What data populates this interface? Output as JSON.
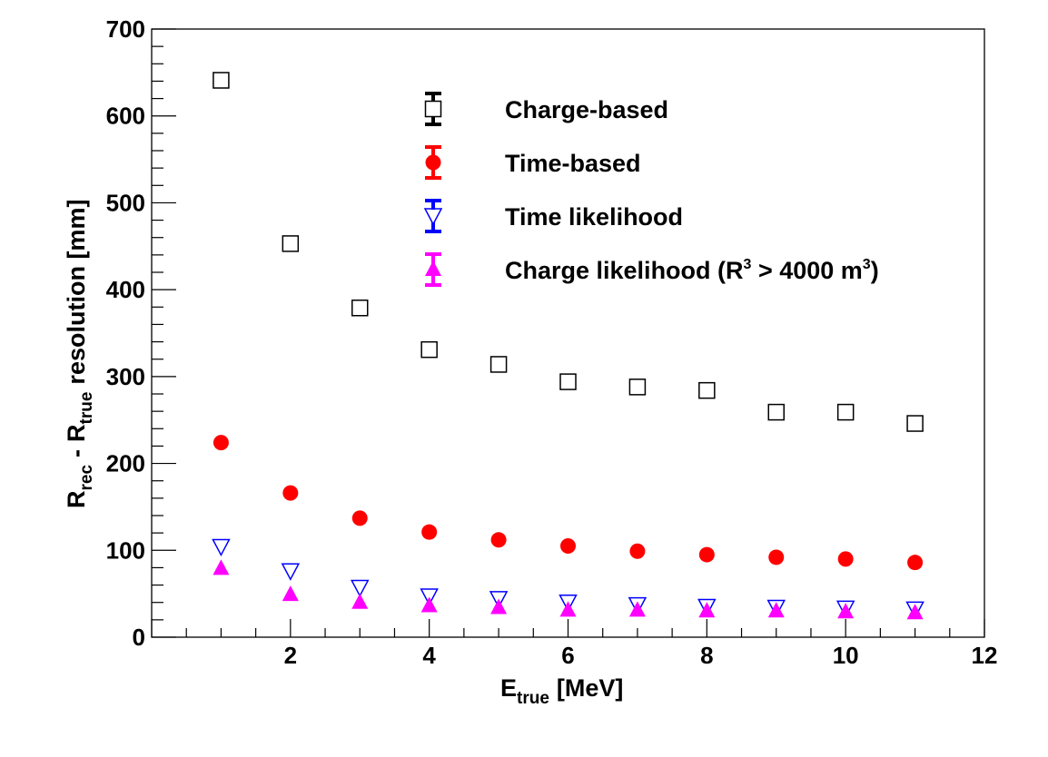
{
  "chart_data": {
    "type": "scatter",
    "xlabel": "E",
    "xlabel_sub": "true",
    "xlabel_unit": "[MeV]",
    "ylabel": {
      "r1": "R",
      "r1_sub": "rec",
      "minus": "-",
      "r2": "R",
      "r2_sub": "true",
      "rest": "resolution [mm]"
    },
    "xlim": [
      0,
      12
    ],
    "ylim": [
      0,
      700
    ],
    "x_ticks": [
      2,
      4,
      6,
      8,
      10,
      12
    ],
    "y_ticks": [
      0,
      100,
      200,
      300,
      400,
      500,
      600,
      700
    ],
    "grid": false,
    "legend_position": "top-center",
    "legend": [
      {
        "label": "Charge-based"
      },
      {
        "label": "Time-based"
      },
      {
        "label": "Time likelihood"
      },
      {
        "label_parts": [
          "Charge likelihood (R",
          "3",
          " > 4000 m",
          "3",
          ")"
        ]
      }
    ],
    "x": [
      1,
      2,
      3,
      4,
      5,
      6,
      7,
      8,
      9,
      10,
      11
    ],
    "series": [
      {
        "name": "Charge-based",
        "marker": "open-square",
        "color": "#000000",
        "values": [
          641,
          453,
          379,
          331,
          314,
          294,
          288,
          284,
          259,
          259,
          246
        ]
      },
      {
        "name": "Time-based",
        "marker": "filled-circle",
        "color": "#ff0000",
        "values": [
          224,
          166,
          137,
          121,
          112,
          105,
          99,
          95,
          92,
          90,
          86
        ]
      },
      {
        "name": "Time likelihood",
        "marker": "open-down-triangle",
        "color": "#0000ff",
        "values": [
          104,
          76,
          57,
          47,
          44,
          40,
          37,
          35,
          34,
          33,
          32
        ]
      },
      {
        "name": "Charge likelihood (R3 > 4000 m3)",
        "marker": "filled-up-triangle",
        "color": "#ff00ff",
        "values": [
          79,
          49,
          40,
          36,
          34,
          31,
          31,
          30,
          30,
          29,
          28
        ]
      }
    ]
  }
}
